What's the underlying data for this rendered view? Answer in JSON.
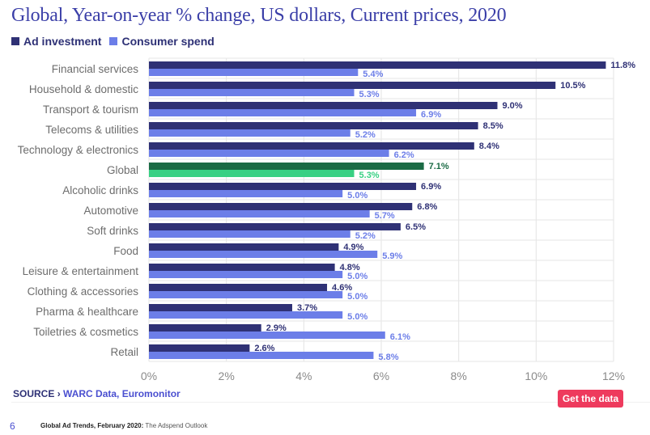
{
  "page": {
    "source_label": "SOURCE",
    "source_sep": "›",
    "source_value": "WARC Data, Euromonitor",
    "button_label": "Get the data",
    "page_number": "6",
    "footer_bold": "Global Ad Trends, February 2020:",
    "footer_rest": "The Adspend Outlook"
  },
  "colors": {
    "ad_investment": "#2f3175",
    "consumer_spend": "#6c7ee8",
    "global_ad": "#1b6b45",
    "global_consumer": "#38d083",
    "ad_label": "#2f3175",
    "consumer_label": "#6c7ee8",
    "global_ad_label": "#1b6b45",
    "global_consumer_label": "#38d083",
    "button": "#ee3a5d",
    "title": "#3b3fa8"
  },
  "chart_data": {
    "type": "bar",
    "orientation": "horizontal",
    "title": "Global, Year-on-year % change, US dollars, Current prices, 2020",
    "xlabel": "",
    "ylabel": "",
    "xlim": [
      0,
      12
    ],
    "xticks": [
      "0%",
      "2%",
      "4%",
      "6%",
      "8%",
      "10%",
      "12%"
    ],
    "xtick_values": [
      0,
      2,
      4,
      6,
      8,
      10,
      12
    ],
    "grid": true,
    "legend_position": "top-left",
    "highlight_category": "Global",
    "categories": [
      "Financial services",
      "Household & domestic",
      "Transport & tourism",
      "Telecoms & utilities",
      "Technology & electronics",
      "Global",
      "Alcoholic drinks",
      "Automotive",
      "Soft drinks",
      "Food",
      "Leisure & entertainment",
      "Clothing & accessories",
      "Pharma & healthcare",
      "Toiletries & cosmetics",
      "Retail"
    ],
    "series": [
      {
        "name": "Ad investment",
        "values": [
          11.8,
          10.5,
          9.0,
          8.5,
          8.4,
          7.1,
          6.9,
          6.8,
          6.5,
          4.9,
          4.8,
          4.6,
          3.7,
          2.9,
          2.6
        ],
        "labels": [
          "11.8%",
          "10.5%",
          "9.0%",
          "8.5%",
          "8.4%",
          "7.1%",
          "6.9%",
          "6.8%",
          "6.5%",
          "4.9%",
          "4.8%",
          "4.6%",
          "3.7%",
          "2.9%",
          "2.6%"
        ]
      },
      {
        "name": "Consumer spend",
        "values": [
          5.4,
          5.3,
          6.9,
          5.2,
          6.2,
          5.3,
          5.0,
          5.7,
          5.2,
          5.9,
          5.0,
          5.0,
          5.0,
          6.1,
          5.8
        ],
        "labels": [
          "5.4%",
          "5.3%",
          "6.9%",
          "5.2%",
          "6.2%",
          "5.3%",
          "5.0%",
          "5.7%",
          "5.2%",
          "5.9%",
          "5.0%",
          "5.0%",
          "5.0%",
          "6.1%",
          "5.8%"
        ]
      }
    ]
  }
}
